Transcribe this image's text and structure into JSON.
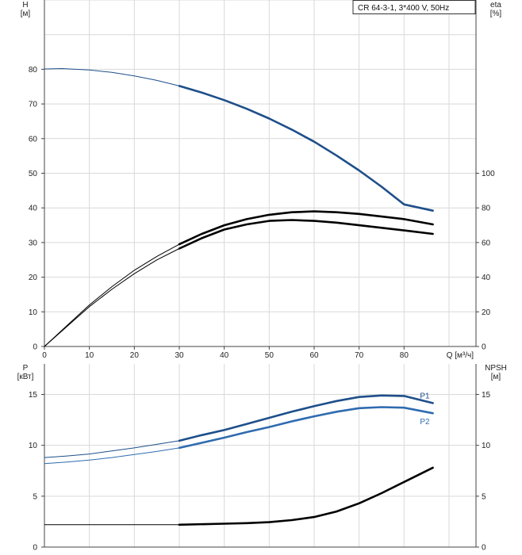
{
  "chart_data": [
    {
      "type": "line",
      "title": "CR 64-3-1, 3*400 V, 50Hz",
      "xlabel": "Q [м³/ч]",
      "xlim": [
        0,
        96
      ],
      "xticks": [
        0,
        10,
        20,
        30,
        40,
        50,
        60,
        70,
        80
      ],
      "ylabel_left": "H\n[м]",
      "ylim_left": [
        0,
        100
      ],
      "yticks_left": [
        0,
        10,
        20,
        30,
        40,
        50,
        60,
        70,
        80
      ],
      "ylabel_right": "eta\n[%]",
      "ylim_right": [
        0,
        200
      ],
      "yticks_right": [
        0,
        20,
        40,
        60,
        80,
        100
      ],
      "grid": true,
      "series": [
        {
          "axis": "left",
          "color": "#1e4f8a",
          "x": [
            0,
            4,
            10,
            15,
            20,
            25,
            30,
            35,
            40,
            45,
            50,
            55,
            60,
            65,
            70,
            75,
            80,
            86.4
          ],
          "y": [
            80.1,
            80.2,
            79.8,
            79.1,
            78.1,
            76.8,
            75.2,
            73.3,
            71.1,
            68.6,
            65.8,
            62.6,
            59.1,
            55.1,
            50.8,
            46.1,
            41.0,
            39.2
          ]
        },
        {
          "axis": "right",
          "color": "#000000",
          "x": [
            0,
            5,
            10,
            15,
            20,
            25,
            30,
            35,
            40,
            45,
            50,
            55,
            60,
            65,
            70,
            75,
            80,
            86.4
          ],
          "y": [
            0,
            12,
            24,
            34.5,
            44,
            52,
            59,
            65,
            70,
            73.5,
            76,
            77.5,
            78,
            77.5,
            76.5,
            75,
            73.5,
            70.5
          ]
        },
        {
          "axis": "right",
          "color": "#000000",
          "x": [
            0,
            5,
            10,
            15,
            20,
            25,
            30,
            35,
            40,
            45,
            50,
            55,
            60,
            65,
            70,
            75,
            80,
            86.4
          ],
          "y": [
            0,
            11.5,
            23,
            33,
            42,
            50,
            56.5,
            62.5,
            67.5,
            70.5,
            72.5,
            73,
            72.5,
            71.5,
            70,
            68.5,
            67,
            65
          ]
        }
      ]
    },
    {
      "type": "line",
      "xlim": [
        0,
        96
      ],
      "xticks": [
        0,
        10,
        20,
        30,
        40,
        50,
        60,
        70,
        80
      ],
      "ylabel_left": "P\n[кВт]",
      "ylim_left": [
        0,
        18
      ],
      "yticks_left": [
        0,
        5,
        10,
        15
      ],
      "ylabel_right": "NPSH\n[м]",
      "ylim_right": [
        0,
        18
      ],
      "yticks_right": [
        0,
        5,
        10,
        15
      ],
      "grid": true,
      "series": [
        {
          "name": "P1",
          "axis": "left",
          "color": "#1e4f8a",
          "x": [
            0,
            5,
            10,
            15,
            20,
            25,
            30,
            35,
            40,
            45,
            50,
            55,
            60,
            65,
            70,
            75,
            80,
            86.4
          ],
          "y": [
            8.8,
            8.95,
            9.15,
            9.45,
            9.75,
            10.1,
            10.45,
            11.0,
            11.5,
            12.1,
            12.7,
            13.3,
            13.85,
            14.35,
            14.75,
            14.9,
            14.85,
            14.15
          ]
        },
        {
          "name": "P2",
          "axis": "left",
          "color": "#2f6bb0",
          "x": [
            0,
            5,
            10,
            15,
            20,
            25,
            30,
            35,
            40,
            45,
            50,
            55,
            60,
            65,
            70,
            75,
            80,
            86.4
          ],
          "y": [
            8.2,
            8.35,
            8.55,
            8.8,
            9.1,
            9.4,
            9.75,
            10.25,
            10.75,
            11.3,
            11.8,
            12.35,
            12.85,
            13.3,
            13.65,
            13.75,
            13.7,
            13.15
          ]
        },
        {
          "axis": "right",
          "color": "#000000",
          "x": [
            0,
            10,
            20,
            30,
            40,
            45,
            50,
            55,
            60,
            65,
            70,
            75,
            80,
            86.4
          ],
          "y": [
            2.2,
            2.2,
            2.2,
            2.2,
            2.3,
            2.35,
            2.45,
            2.65,
            2.95,
            3.5,
            4.3,
            5.3,
            6.4,
            7.8
          ]
        }
      ]
    }
  ]
}
